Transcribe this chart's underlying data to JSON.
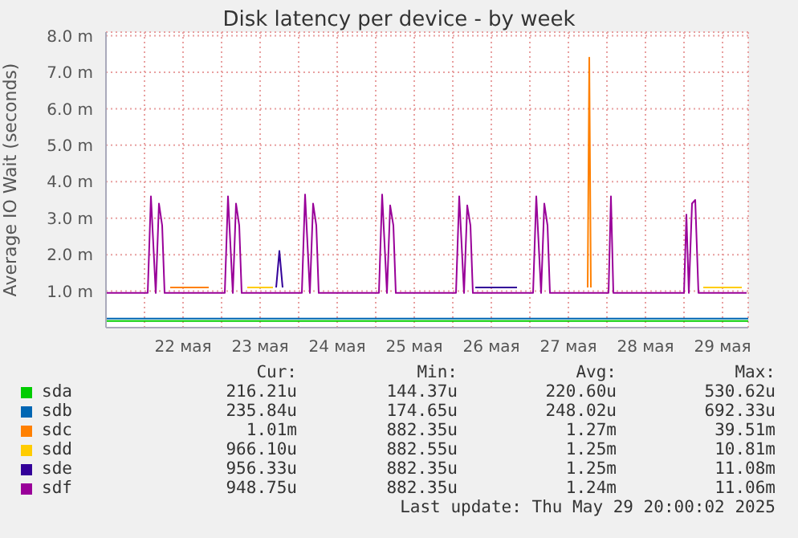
{
  "chart_data": {
    "type": "line",
    "title": "Disk latency per device - by week",
    "ylabel": "Average IO Wait (seconds)",
    "x": [
      "2025-05-21T12:00",
      "2025-05-22T01:00",
      "2025-05-22T02:00",
      "2025-05-22T03:30",
      "2025-05-22T04:30",
      "2025-05-22T05:30",
      "2025-05-22T06:15",
      "2025-05-22T14:00",
      "2025-05-23T01:00",
      "2025-05-23T02:00",
      "2025-05-23T03:30",
      "2025-05-23T04:30",
      "2025-05-23T05:30",
      "2025-05-23T06:15",
      "2025-05-23T17:30",
      "2025-05-23T18:00",
      "2025-05-23T18:30",
      "2025-05-24T01:00",
      "2025-05-24T02:00",
      "2025-05-24T03:30",
      "2025-05-24T04:30",
      "2025-05-24T05:30",
      "2025-05-24T06:15",
      "2025-05-25T01:00",
      "2025-05-25T02:00",
      "2025-05-25T03:30",
      "2025-05-25T04:30",
      "2025-05-25T05:30",
      "2025-05-25T06:15",
      "2025-05-26T01:00",
      "2025-05-26T02:00",
      "2025-05-26T03:30",
      "2025-05-26T04:30",
      "2025-05-26T05:30",
      "2025-05-26T06:15",
      "2025-05-26T12:00",
      "2025-05-27T01:00",
      "2025-05-27T02:00",
      "2025-05-27T03:30",
      "2025-05-27T04:30",
      "2025-05-27T05:30",
      "2025-05-27T06:15",
      "2025-05-27T18:00",
      "2025-05-27T18:30",
      "2025-05-27T19:00",
      "2025-05-28T00:30",
      "2025-05-28T01:15",
      "2025-05-28T02:00",
      "2025-05-29T00:00",
      "2025-05-29T00:45",
      "2025-05-29T01:30",
      "2025-05-29T02:30",
      "2025-05-29T03:30",
      "2025-05-29T04:30",
      "2025-05-29T19:30"
    ],
    "series": [
      {
        "name": "sda",
        "color": "#00cc00",
        "x": [
          "2025-05-21T12:00",
          "2025-05-29T20:00"
        ],
        "values": [
          0.18,
          0.18
        ]
      },
      {
        "name": "sdb",
        "color": "#0066b3",
        "x": [
          "2025-05-21T12:00",
          "2025-05-29T20:00"
        ],
        "values": [
          0.25,
          0.25
        ]
      },
      {
        "name": "sdc",
        "color": "#ff8000",
        "x": [
          "2025-05-22T08:00",
          "2025-05-22T20:00",
          "2025-05-24T00:00",
          "2025-05-27T18:00",
          "2025-05-27T18:30",
          "2025-05-27T19:00"
        ],
        "values": [
          1.1,
          1.1,
          null,
          1.1,
          7.4,
          1.1
        ]
      },
      {
        "name": "sdd",
        "color": "#ffcc00",
        "x": [
          "2025-05-23T08:00",
          "2025-05-23T16:00",
          "2025-05-24T00:00",
          "2025-05-29T06:00",
          "2025-05-29T18:00"
        ],
        "values": [
          1.1,
          1.1,
          null,
          1.1,
          1.1
        ]
      },
      {
        "name": "sde",
        "color": "#330099",
        "x": [
          "2025-05-23T17:00",
          "2025-05-23T18:00",
          "2025-05-23T19:00",
          "2025-05-25T00:00",
          "2025-05-26T07:00",
          "2025-05-26T20:00"
        ],
        "values": [
          1.1,
          2.1,
          1.1,
          null,
          1.1,
          1.1
        ]
      },
      {
        "name": "sdf",
        "color": "#990099",
        "values": [
          0.95,
          0.95,
          3.6,
          0.95,
          3.4,
          2.8,
          0.95,
          0.95,
          0.95,
          3.6,
          0.95,
          3.4,
          2.8,
          0.95,
          0.95,
          0.95,
          0.95,
          0.95,
          3.65,
          0.95,
          3.4,
          2.8,
          0.95,
          0.95,
          3.65,
          0.95,
          3.35,
          2.8,
          0.95,
          0.95,
          3.6,
          0.95,
          3.35,
          2.8,
          0.95,
          0.95,
          0.95,
          3.6,
          0.95,
          3.4,
          2.8,
          0.95,
          0.95,
          0.95,
          0.95,
          0.95,
          3.6,
          0.95,
          0.95,
          3.1,
          0.95,
          3.4,
          3.5,
          0.95,
          0.95
        ]
      }
    ],
    "xlim": [
      "2025-05-21T12:00",
      "2025-05-29T20:00"
    ],
    "xticks": [
      {
        "value": "2025-05-22T00:00",
        "label": null
      },
      {
        "value": "2025-05-22T12:00",
        "label": "22 мая"
      },
      {
        "value": "2025-05-23T00:00",
        "label": null
      },
      {
        "value": "2025-05-23T12:00",
        "label": "23 мая"
      },
      {
        "value": "2025-05-24T00:00",
        "label": null
      },
      {
        "value": "2025-05-24T12:00",
        "label": "24 мая"
      },
      {
        "value": "2025-05-25T00:00",
        "label": null
      },
      {
        "value": "2025-05-25T12:00",
        "label": "25 мая"
      },
      {
        "value": "2025-05-26T00:00",
        "label": null
      },
      {
        "value": "2025-05-26T12:00",
        "label": "26 мая"
      },
      {
        "value": "2025-05-27T00:00",
        "label": null
      },
      {
        "value": "2025-05-27T12:00",
        "label": "27 мая"
      },
      {
        "value": "2025-05-28T00:00",
        "label": null
      },
      {
        "value": "2025-05-28T12:00",
        "label": "28 мая"
      },
      {
        "value": "2025-05-29T00:00",
        "label": null
      },
      {
        "value": "2025-05-29T12:00",
        "label": "29 мая"
      }
    ],
    "ylim": [
      0,
      8.1
    ],
    "yticks": [
      {
        "value": 1,
        "label": "1.0 m"
      },
      {
        "value": 2,
        "label": "2.0 m"
      },
      {
        "value": 3,
        "label": "3.0 m"
      },
      {
        "value": 4,
        "label": "4.0 m"
      },
      {
        "value": 5,
        "label": "5.0 m"
      },
      {
        "value": 6,
        "label": "6.0 m"
      },
      {
        "value": 7,
        "label": "7.0 m"
      },
      {
        "value": 8,
        "label": "8.0 m"
      }
    ],
    "grid": true,
    "legend": "bottom",
    "marker": "none",
    "line_style": "solid",
    "annotations": [
      "Cur:",
      "Min:",
      "Avg:",
      "Max:",
      "216.21u",
      "144.37u",
      "220.60u",
      "530.62u",
      "235.84u",
      "174.65u",
      "248.02u",
      "692.33u",
      "1.01m",
      "882.35u",
      "1.27m",
      "39.51m",
      "966.10u",
      "882.55u",
      "1.25m",
      "10.81m",
      "956.33u",
      "882.35u",
      "1.25m",
      "11.08m",
      "948.75u",
      "882.35u",
      "1.24m",
      "11.06m",
      "Last update: Thu May 29 20:00:02 2025"
    ]
  }
}
